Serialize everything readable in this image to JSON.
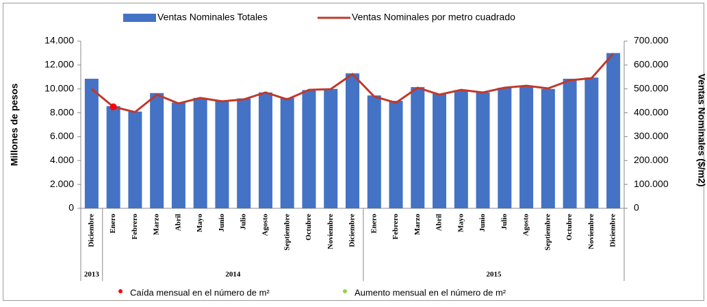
{
  "chart_data": {
    "type": "bar_line",
    "categories": [
      "Diciembre",
      "Enero",
      "Febrero",
      "Marzo",
      "Abril",
      "Mayo",
      "Junio",
      "Julio",
      "Agosto",
      "Septiembre",
      "Octubre",
      "Noviembre",
      "Diciembre",
      "Enero",
      "Febrero",
      "Marzo",
      "Abril",
      "Mayo",
      "Junio",
      "Julio",
      "Agosto",
      "Septiembre",
      "Octubre",
      "Noviembre",
      "Diciembre"
    ],
    "category_years": [
      "2013",
      "2014",
      null,
      null,
      null,
      null,
      null,
      null,
      null,
      null,
      null,
      null,
      null,
      "2015",
      null,
      null,
      null,
      null,
      null,
      null,
      null,
      null,
      null,
      null,
      null
    ],
    "series": [
      {
        "name": "Ventas Nominales Totales",
        "kind": "bar",
        "color": "#4472c4",
        "values": [
          10850,
          8550,
          8100,
          9650,
          8850,
          9250,
          9000,
          9200,
          9700,
          9250,
          9900,
          10000,
          11300,
          9450,
          9000,
          10150,
          9600,
          9900,
          9700,
          10100,
          10200,
          10000,
          10850,
          10950,
          13000
        ]
      },
      {
        "name": "Ventas Nominales por metro cuadrado",
        "kind": "line",
        "axis": "y2",
        "color": "#c0392b",
        "values": [
          500000,
          425000,
          403000,
          476000,
          439000,
          462000,
          448000,
          456000,
          485000,
          456000,
          496000,
          499000,
          562000,
          468000,
          442000,
          505000,
          476000,
          496000,
          485000,
          505000,
          513000,
          502000,
          536000,
          545000,
          648000
        ],
        "point_colors": [
          null,
          "#ff0000",
          null,
          null,
          null,
          null,
          null,
          null,
          null,
          null,
          null,
          null,
          null,
          null,
          null,
          null,
          null,
          null,
          null,
          null,
          null,
          null,
          null,
          null,
          null
        ]
      }
    ],
    "ylabel": "Millones de pesos",
    "y2label": "Ventas Nominales ($/m2)",
    "ylim": [
      0,
      14000
    ],
    "yticks": [
      0,
      {
        "value": 2000,
        "label": "2.000"
      },
      {
        "value": 4000,
        "label": "4.000"
      },
      {
        "value": 6000,
        "label": "6.000"
      },
      {
        "value": 8000,
        "label": "8.000"
      },
      {
        "value": 10000,
        "label": "10.000"
      },
      {
        "value": 12000,
        "label": "12.000"
      },
      {
        "value": 14000,
        "label": "14.000"
      }
    ],
    "y2lim": [
      0,
      700000
    ],
    "y2ticks": [
      0,
      {
        "value": 100000,
        "label": "100.000"
      },
      {
        "value": 200000,
        "label": "200.000"
      },
      {
        "value": 300000,
        "label": "300.000"
      },
      {
        "value": 400000,
        "label": "400.000"
      },
      {
        "value": 500000,
        "label": "500.000"
      },
      {
        "value": 600000,
        "label": "600.000"
      },
      {
        "value": 700000,
        "label": "700.000"
      }
    ],
    "marker_legend": [
      {
        "label": "Caída mensual en el número de m²",
        "color": "#ff0000"
      },
      {
        "label": "Aumento mensual en el número de m²",
        "color": "#92d050"
      }
    ]
  }
}
